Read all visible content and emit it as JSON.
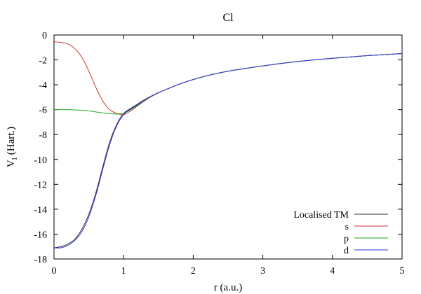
{
  "chart_data": {
    "type": "line",
    "title": "Cl",
    "xlabel": "r (a.u.)",
    "ylabel": "V",
    "ylabel_sub": "l",
    "ylabel_unit": "(Hart.)",
    "xlim": [
      0,
      5
    ],
    "ylim": [
      -18,
      0
    ],
    "x_ticks": [
      0,
      1,
      2,
      3,
      4,
      5
    ],
    "y_ticks": [
      0,
      -2,
      -4,
      -6,
      -8,
      -10,
      -12,
      -14,
      -16,
      -18
    ],
    "x_tick_labels": [
      "0",
      "1",
      "2",
      "3",
      "4",
      "5"
    ],
    "y_tick_labels": [
      "0",
      "-2",
      "-4",
      "-6",
      "-8",
      "-10",
      "-12",
      "-14",
      "-16",
      "-18"
    ],
    "grid": false,
    "legend_position": "bottom-right",
    "x": [
      0.0,
      0.1,
      0.2,
      0.3,
      0.4,
      0.5,
      0.6,
      0.7,
      0.8,
      0.9,
      1.0,
      1.1,
      1.2,
      1.3,
      1.4,
      1.5,
      1.6,
      1.8,
      2.0,
      2.2,
      2.5,
      3.0,
      3.5,
      4.0,
      4.5,
      5.0
    ],
    "series": [
      {
        "name": "Localised TM",
        "color": "#303030",
        "values": [
          -17.1,
          -17.0,
          -16.8,
          -16.4,
          -15.6,
          -14.4,
          -12.7,
          -10.6,
          -8.6,
          -7.2,
          -6.3,
          -5.9,
          -5.55,
          -5.2,
          -4.9,
          -4.63,
          -4.4,
          -3.95,
          -3.58,
          -3.27,
          -2.91,
          -2.48,
          -2.13,
          -1.87,
          -1.66,
          -1.49
        ]
      },
      {
        "name": "s",
        "color": "#cc3333",
        "values": [
          -0.55,
          -0.6,
          -0.72,
          -1.1,
          -1.8,
          -2.9,
          -4.2,
          -5.3,
          -6.0,
          -6.3,
          -6.4,
          -6.1,
          -5.7,
          -5.3,
          -4.95,
          -4.65,
          -4.4,
          -3.95,
          -3.58,
          -3.27,
          -2.91,
          -2.48,
          -2.13,
          -1.87,
          -1.66,
          -1.49
        ]
      },
      {
        "name": "p",
        "color": "#22aa22",
        "values": [
          -6.0,
          -6.0,
          -6.0,
          -6.02,
          -6.05,
          -6.1,
          -6.18,
          -6.26,
          -6.32,
          -6.35,
          -6.3,
          -6.0,
          -5.65,
          -5.25,
          -4.92,
          -4.64,
          -4.4,
          -3.95,
          -3.58,
          -3.27,
          -2.91,
          -2.48,
          -2.13,
          -1.87,
          -1.66,
          -1.49
        ]
      },
      {
        "name": "d",
        "color": "#3333dd",
        "values": [
          -17.1,
          -17.1,
          -16.9,
          -16.5,
          -15.8,
          -14.6,
          -12.9,
          -10.8,
          -8.8,
          -7.3,
          -6.4,
          -5.95,
          -5.6,
          -5.22,
          -4.9,
          -4.63,
          -4.4,
          -3.95,
          -3.58,
          -3.27,
          -2.91,
          -2.48,
          -2.13,
          -1.87,
          -1.66,
          -1.49
        ]
      }
    ]
  }
}
